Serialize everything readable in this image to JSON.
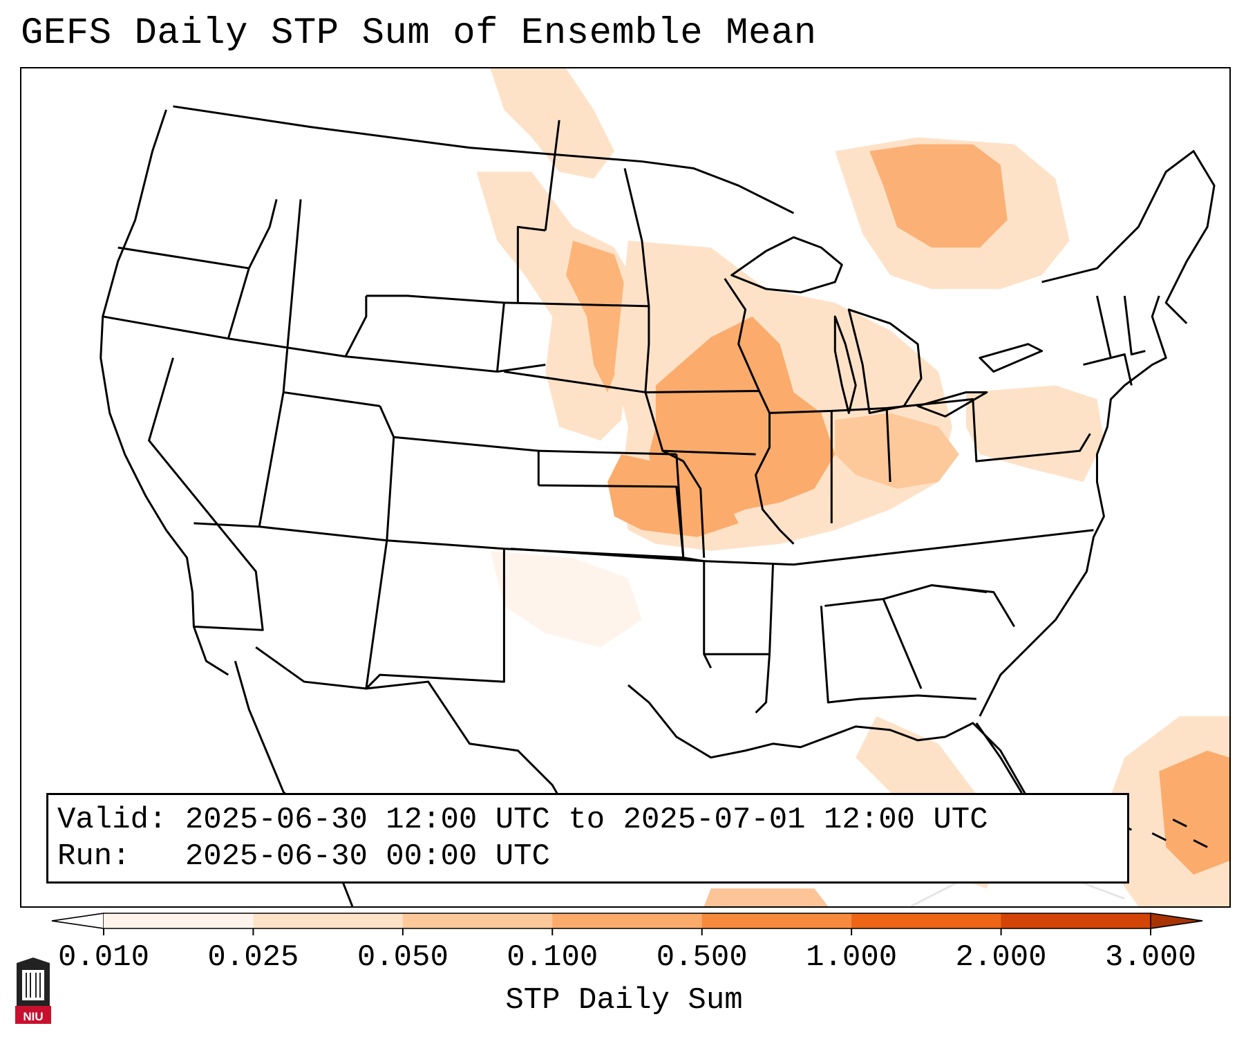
{
  "title": "GEFS Daily STP Sum of Ensemble Mean",
  "info": {
    "valid_line": "Valid: 2025-06-30 12:00 UTC to 2025-07-01 12:00 UTC",
    "run_line": "Run:   2025-06-30 00:00 UTC"
  },
  "colorbar": {
    "label": "STP Daily Sum",
    "ticks": [
      "0.010",
      "0.025",
      "0.050",
      "0.100",
      "0.500",
      "1.000",
      "2.000",
      "3.000"
    ],
    "colors": [
      "#fff4ec",
      "#fee2c8",
      "#fdc89a",
      "#fbab6b",
      "#f88a3e",
      "#ee6516",
      "#d44406"
    ],
    "under_color": "#ffffff",
    "over_color": "#a83404",
    "extend": "both"
  },
  "logo": {
    "text": "NIU",
    "colors": {
      "red": "#c8102e",
      "dark": "#222222"
    }
  },
  "map": {
    "projection": "Lambert conformal, CONUS",
    "field": "STP daily sum, ensemble mean",
    "line_color": "#000000"
  }
}
